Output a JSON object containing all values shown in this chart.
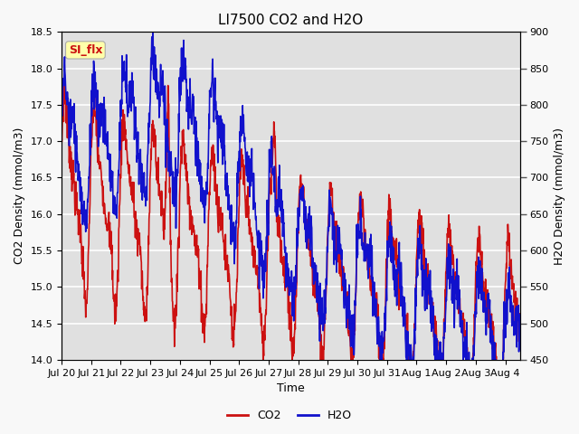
{
  "title": "LI7500 CO2 and H2O",
  "xlabel": "Time",
  "ylabel_left": "CO2 Density (mmol/m3)",
  "ylabel_right": "H2O Density (mmol/m3)",
  "ylim_left": [
    14.0,
    18.5
  ],
  "ylim_right": [
    450,
    900
  ],
  "xtick_labels": [
    "Jul 20",
    "Jul 21",
    "Jul 22",
    "Jul 23",
    "Jul 24",
    "Jul 25",
    "Jul 26",
    "Jul 27",
    "Jul 28",
    "Jul 29",
    "Jul 30",
    "Jul 31",
    "Aug 1",
    "Aug 2",
    "Aug 3",
    "Aug 4"
  ],
  "legend_labels": [
    "CO2",
    "H2O"
  ],
  "co2_color": "#cc1111",
  "h2o_color": "#1111cc",
  "annotation_text": "SI_flx",
  "annotation_color": "#cc1111",
  "annotation_bg": "#ffffaa",
  "plot_bg": "#e0e0e0",
  "fig_bg": "#f8f8f8",
  "grid_color": "#ffffff",
  "title_fontsize": 11,
  "label_fontsize": 9,
  "tick_fontsize": 8,
  "legend_fontsize": 9,
  "line_width": 1.2,
  "n_points": 1500,
  "days": 15.5,
  "seed": 7
}
